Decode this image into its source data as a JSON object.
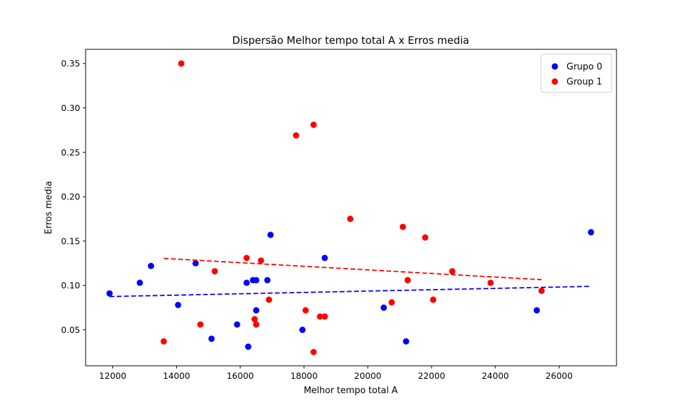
{
  "chart_data": {
    "type": "scatter",
    "title": "Dispersão Melhor tempo total A x Erros media",
    "xlabel": "Melhor tempo total A",
    "ylabel": "Erros media",
    "xlim": [
      11150,
      27800
    ],
    "ylim": [
      0.0095,
      0.366
    ],
    "xticks": [
      12000,
      14000,
      16000,
      18000,
      20000,
      22000,
      24000,
      26000
    ],
    "xtick_labels": [
      "12000",
      "14000",
      "16000",
      "18000",
      "20000",
      "22000",
      "24000",
      "26000"
    ],
    "yticks": [
      0.05,
      0.1,
      0.15,
      0.2,
      0.25,
      0.3,
      0.35
    ],
    "ytick_labels": [
      "0.05",
      "0.10",
      "0.15",
      "0.20",
      "0.25",
      "0.30",
      "0.35"
    ],
    "grid": false,
    "legend_position": "top-right",
    "series": [
      {
        "name": "Grupo 0",
        "color": "#0000ff",
        "points": [
          [
            11900,
            0.091
          ],
          [
            12850,
            0.103
          ],
          [
            13200,
            0.122
          ],
          [
            14050,
            0.078
          ],
          [
            14600,
            0.125
          ],
          [
            15100,
            0.04
          ],
          [
            15900,
            0.056
          ],
          [
            16200,
            0.103
          ],
          [
            16250,
            0.031
          ],
          [
            16400,
            0.106
          ],
          [
            16500,
            0.106
          ],
          [
            16500,
            0.072
          ],
          [
            16850,
            0.106
          ],
          [
            16950,
            0.157
          ],
          [
            17950,
            0.05
          ],
          [
            18650,
            0.131
          ],
          [
            20500,
            0.075
          ],
          [
            21200,
            0.037
          ],
          [
            25300,
            0.072
          ],
          [
            27000,
            0.16
          ]
        ],
        "trendline": {
          "x": [
            11900,
            27000
          ],
          "y": [
            0.0875,
            0.099
          ],
          "style": "dashed"
        }
      },
      {
        "name": "Group 1",
        "color": "#ff0000",
        "points": [
          [
            13600,
            0.037
          ],
          [
            14150,
            0.35
          ],
          [
            14750,
            0.056
          ],
          [
            15200,
            0.116
          ],
          [
            16200,
            0.131
          ],
          [
            16450,
            0.062
          ],
          [
            16500,
            0.056
          ],
          [
            16650,
            0.128
          ],
          [
            16900,
            0.084
          ],
          [
            17750,
            0.269
          ],
          [
            18050,
            0.072
          ],
          [
            18300,
            0.025
          ],
          [
            18300,
            0.281
          ],
          [
            18500,
            0.065
          ],
          [
            18650,
            0.065
          ],
          [
            19450,
            0.175
          ],
          [
            20750,
            0.081
          ],
          [
            21100,
            0.166
          ],
          [
            21250,
            0.106
          ],
          [
            21800,
            0.154
          ],
          [
            22050,
            0.084
          ],
          [
            22650,
            0.116
          ],
          [
            23850,
            0.103
          ],
          [
            25450,
            0.094
          ]
        ],
        "trendline": {
          "x": [
            13600,
            25450
          ],
          "y": [
            0.1305,
            0.1065
          ],
          "style": "dashed"
        }
      }
    ]
  }
}
